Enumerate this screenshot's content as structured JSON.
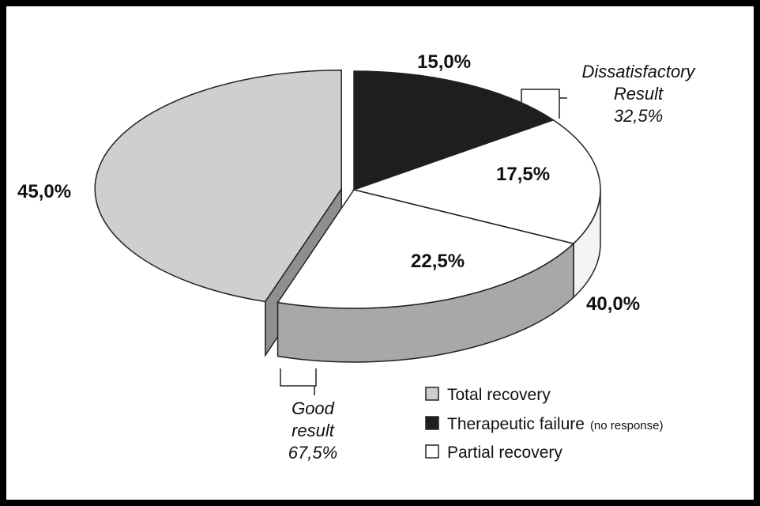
{
  "chart_data": {
    "type": "pie",
    "slices": [
      {
        "name": "Total recovery",
        "value": 45.0,
        "label": "45,0%",
        "fill": "#cfcfcf",
        "side": "#8f8f8f"
      },
      {
        "name": "Therapeutic failure",
        "value": 15.0,
        "label": "15,0%",
        "fill": "#1e1e1e",
        "side": "#111111"
      },
      {
        "name": "Partial recovery",
        "value": 17.5,
        "label": "17,5%",
        "fill": "#ffffff",
        "side": "#f4f4f4"
      },
      {
        "name": "Partial recovery",
        "value": 22.5,
        "label": "22,5%",
        "fill": "#ffffff",
        "side": "#a8a8a8"
      }
    ],
    "group_labels": [
      {
        "label": "40,0%"
      }
    ],
    "annotations": {
      "dissatisfactory": {
        "line1": "Dissatisfactory",
        "line2": "Result",
        "value": "32,5%"
      },
      "good": {
        "line1": "Good",
        "line2": "result",
        "value": "67,5%"
      }
    },
    "legend": {
      "position": "bottom-right",
      "items": [
        {
          "label": "Total recovery",
          "note": "",
          "color": "#cfcfcf"
        },
        {
          "label": "Therapeutic failure",
          "note": "(no response)",
          "color": "#1e1e1e"
        },
        {
          "label": "Partial recovery",
          "note": "",
          "color": "#ffffff"
        }
      ]
    }
  }
}
